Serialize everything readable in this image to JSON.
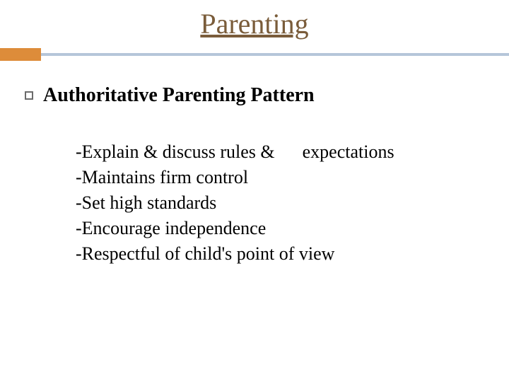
{
  "title": "Parenting",
  "heading": "Authoritative Parenting Pattern",
  "lines": [
    "-Explain & discuss rules &      expectations",
    "-Maintains firm control",
    "-Set high standards",
    "-Encourage independence",
    "-Respectful of child's point of view"
  ],
  "colors": {
    "title_color": "#7a5c3a",
    "divider_color": "#b5c6d9",
    "accent_color": "#dd8c3a",
    "text_color": "#000000",
    "bullet_border": "#6b6b6b",
    "background": "#ffffff"
  },
  "fonts": {
    "title_size": 40,
    "heading_size": 28,
    "body_size": 26,
    "family": "Times New Roman"
  }
}
